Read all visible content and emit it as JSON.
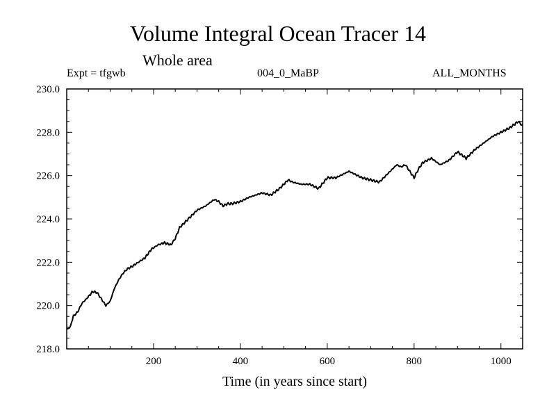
{
  "chart_data": {
    "type": "line",
    "title": "Volume Integral Ocean Tracer 14",
    "subtitle": "Whole area",
    "info_left": "Expt = tfgwb",
    "info_center": "004_0_MaBP",
    "info_right": "ALL_MONTHS",
    "xlabel": "Time (in years since start)",
    "ylabel": "",
    "xlim": [
      0,
      1050
    ],
    "ylim": [
      218.0,
      230.0
    ],
    "x_ticks": [
      200,
      400,
      600,
      800,
      1000
    ],
    "x_tick_labels": [
      "200",
      "400",
      "600",
      "800",
      "1000"
    ],
    "y_ticks": [
      218,
      220,
      222,
      224,
      226,
      228,
      230
    ],
    "y_tick_labels": [
      "218.0",
      "220.0",
      "222.0",
      "224.0",
      "226.0",
      "228.0",
      "230.0"
    ],
    "series": [
      {
        "name": "Tracer 14",
        "x": [
          0,
          8,
          15,
          25,
          35,
          45,
          60,
          70,
          80,
          90,
          100,
          110,
          120,
          130,
          140,
          150,
          165,
          180,
          195,
          210,
          225,
          240,
          250,
          260,
          270,
          290,
          300,
          320,
          340,
          350,
          360,
          370,
          380,
          400,
          420,
          450,
          470,
          490,
          500,
          510,
          520,
          540,
          560,
          580,
          600,
          620,
          640,
          650,
          660,
          680,
          700,
          720,
          740,
          760,
          770,
          780,
          800,
          810,
          820,
          840,
          860,
          880,
          900,
          920,
          940,
          960,
          980,
          1000,
          1020,
          1040,
          1050
        ],
        "values": [
          218.9,
          219.0,
          219.5,
          219.7,
          220.1,
          220.3,
          220.65,
          220.6,
          220.3,
          220.0,
          220.2,
          220.8,
          221.2,
          221.5,
          221.7,
          221.8,
          222.0,
          222.2,
          222.6,
          222.8,
          222.9,
          222.8,
          223.1,
          223.6,
          223.8,
          224.2,
          224.4,
          224.6,
          224.9,
          224.8,
          224.6,
          224.7,
          224.7,
          224.8,
          225.0,
          225.2,
          225.1,
          225.4,
          225.6,
          225.8,
          225.7,
          225.6,
          225.6,
          225.4,
          225.9,
          225.9,
          226.1,
          226.2,
          226.1,
          225.9,
          225.8,
          225.7,
          226.1,
          226.5,
          226.4,
          226.5,
          225.9,
          226.3,
          226.6,
          226.8,
          226.5,
          226.7,
          227.1,
          226.8,
          227.2,
          227.5,
          227.8,
          228.0,
          228.2,
          228.5,
          228.3
        ]
      }
    ]
  }
}
